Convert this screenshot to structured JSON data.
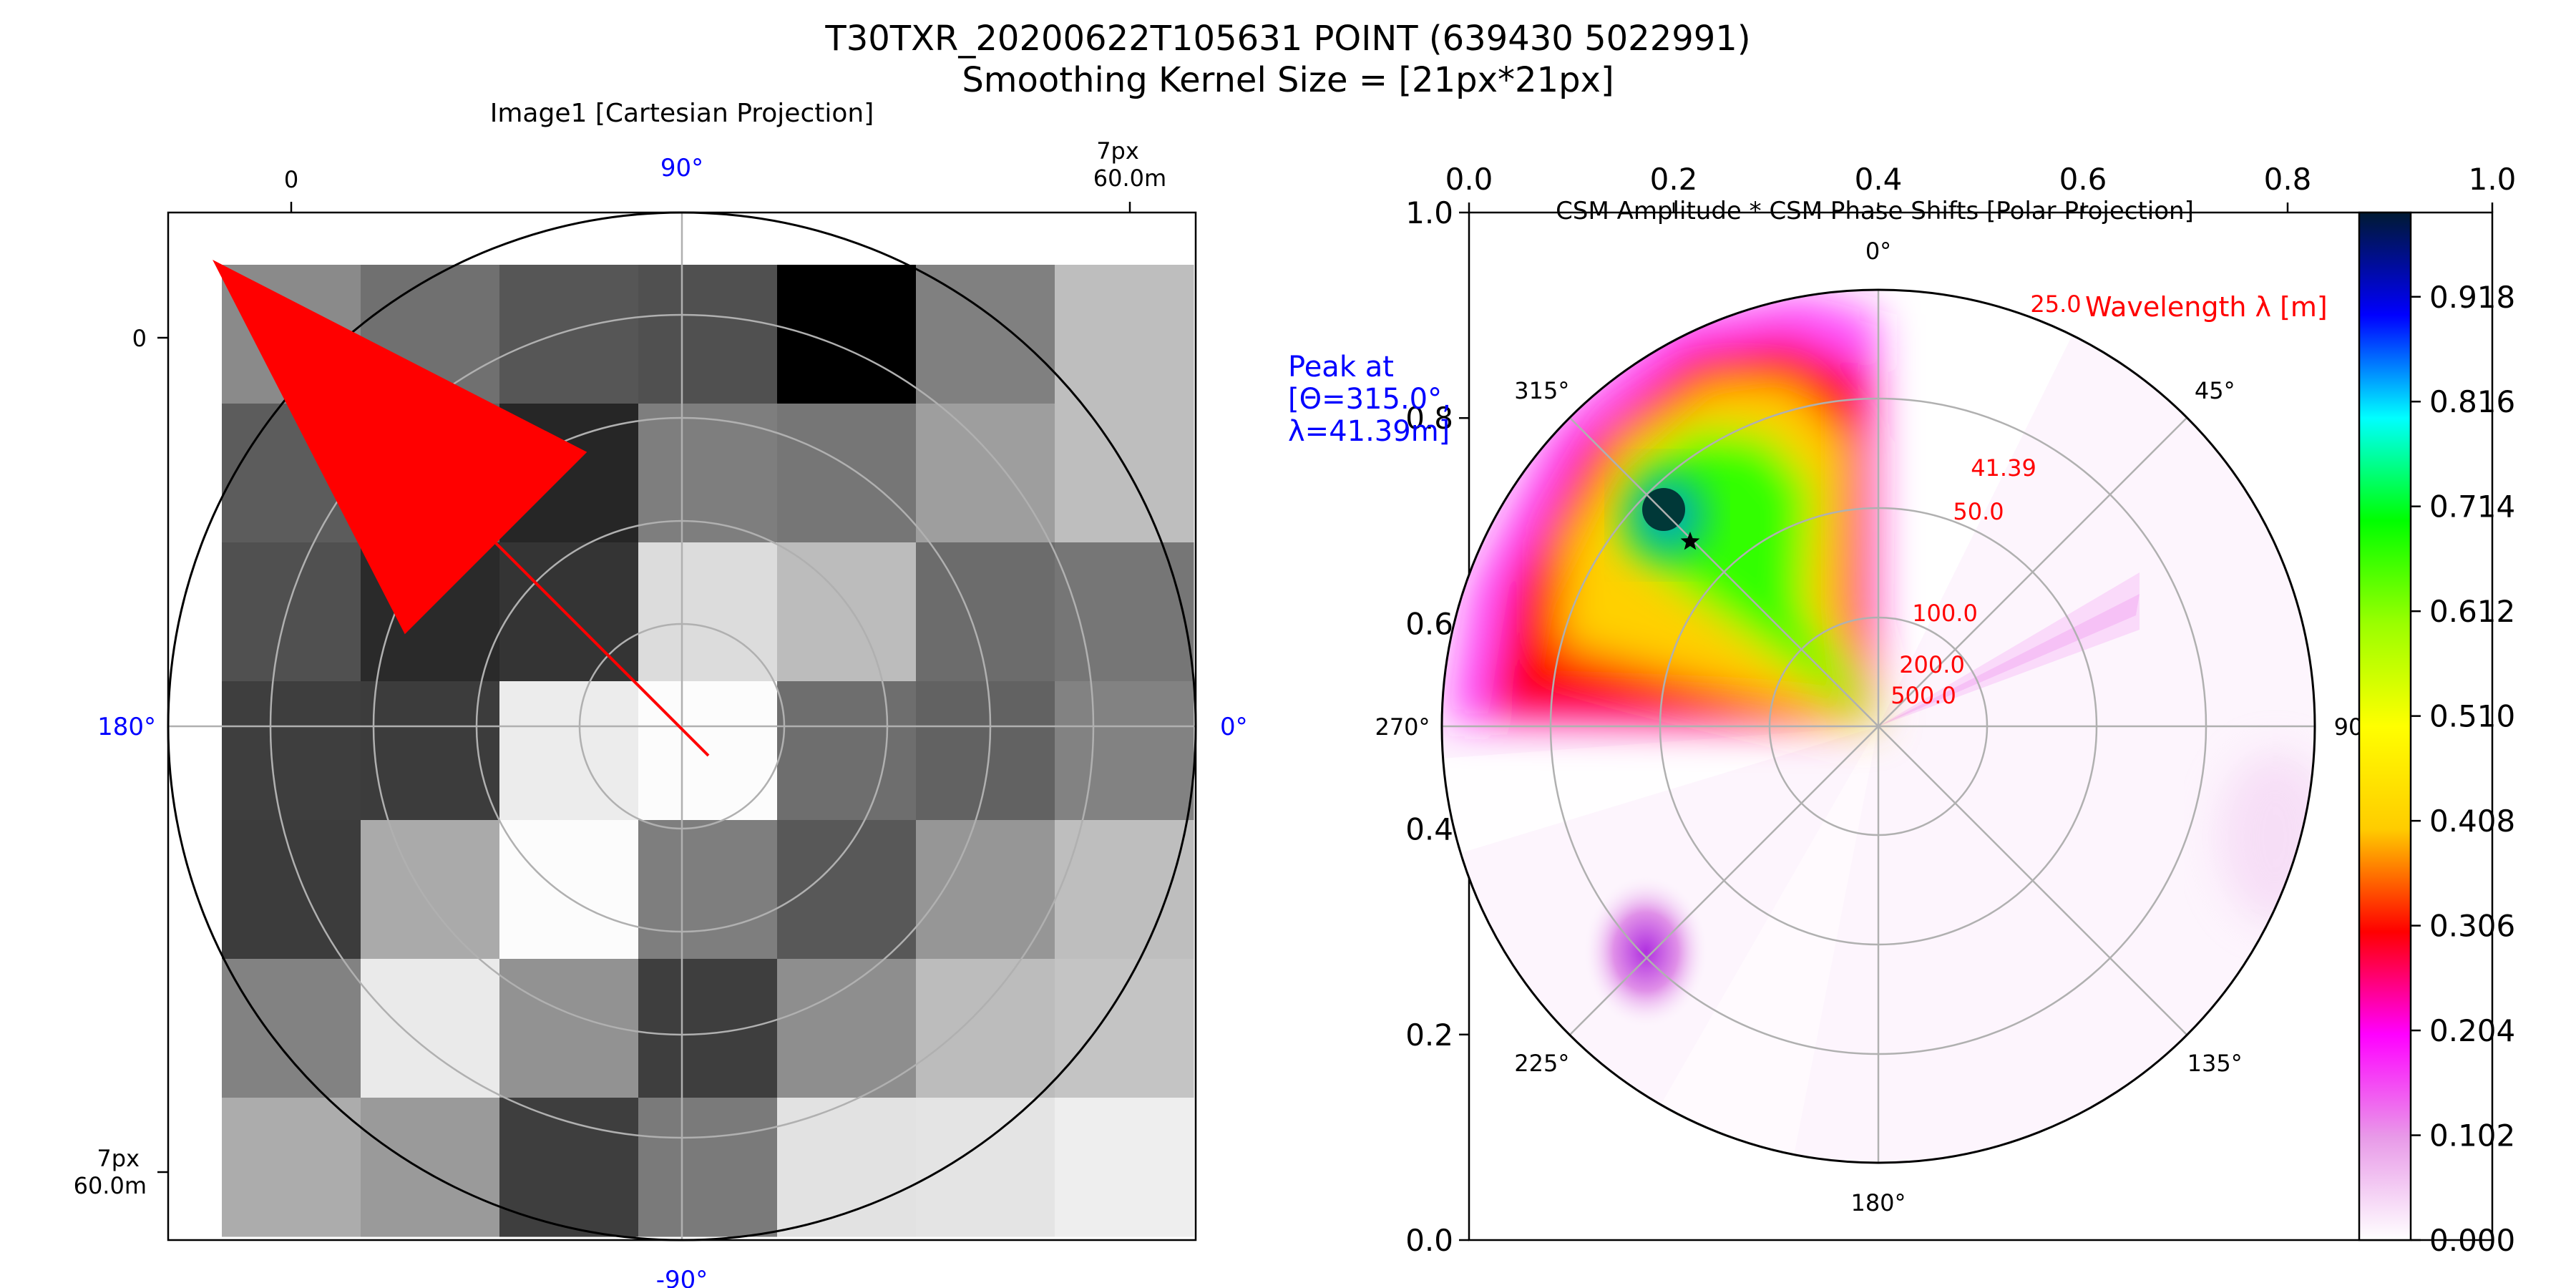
{
  "title": {
    "line1": "T30TXR_20200622T105631 POINT (639430 5022991)",
    "line2": "Smoothing Kernel Size = [21px*21px]"
  },
  "colors": {
    "blue_text": "#0000ff",
    "red_text": "#ff0000",
    "arrow": "#ff0000"
  },
  "chart_data": [
    {
      "type": "heatmap",
      "title": "Image1 [Cartesian Projection]",
      "image_grayscale_values": [
        [
          138,
          112,
          86,
          80,
          0,
          128,
          190
        ],
        [
          92,
          98,
          38,
          126,
          118,
          158,
          190
        ],
        [
          80,
          42,
          52,
          220,
          188,
          108,
          118
        ],
        [
          62,
          60,
          236,
          252,
          110,
          98,
          130
        ],
        [
          60,
          170,
          252,
          126,
          88,
          150,
          190
        ],
        [
          130,
          234,
          146,
          62,
          142,
          188,
          196
        ],
        [
          172,
          154,
          62,
          122,
          226,
          228,
          238
        ]
      ],
      "x_ticks": [
        "0",
        "7px\n60.0m"
      ],
      "y_ticks": [
        "0",
        "7px\n60.0m"
      ],
      "angle_labels": [
        "90°",
        "0°",
        "-90°",
        "180°"
      ],
      "overlay": {
        "type": "direction_arrow",
        "from_center_angle_deg": 135
      }
    },
    {
      "type": "heatmap",
      "projection": "polar",
      "title": "CSM Amplitude * CSM Phase Shifts [Polar Projection]",
      "theta_labels": [
        "0°",
        "45°",
        "90°",
        "135°",
        "180°",
        "225°",
        "270°",
        "315°"
      ],
      "radial_axis_title": "Wavelength λ [m]",
      "radial_labels": [
        "25.0",
        "41.39",
        "50.0",
        "100.0",
        "200.0",
        "500.0"
      ],
      "peak": {
        "theta_deg": 315.0,
        "wavelength_m": 41.39,
        "label_line1": "Peak at",
        "label_line2": "[Θ=315.0°,",
        "label_line3": "λ=41.39m]"
      },
      "outer_axes_ticks_x": [
        "0.0",
        "0.2",
        "0.4",
        "0.6",
        "0.8",
        "1.0"
      ],
      "outer_axes_ticks_y": [
        "0.0",
        "0.2",
        "0.4",
        "0.6",
        "0.8",
        "1.0"
      ],
      "colorbar": {
        "min": 0.0,
        "max": 1.0,
        "ticks": [
          "0.000",
          "0.102",
          "0.204",
          "0.306",
          "0.408",
          "0.510",
          "0.612",
          "0.714",
          "0.816",
          "0.918"
        ]
      }
    }
  ]
}
